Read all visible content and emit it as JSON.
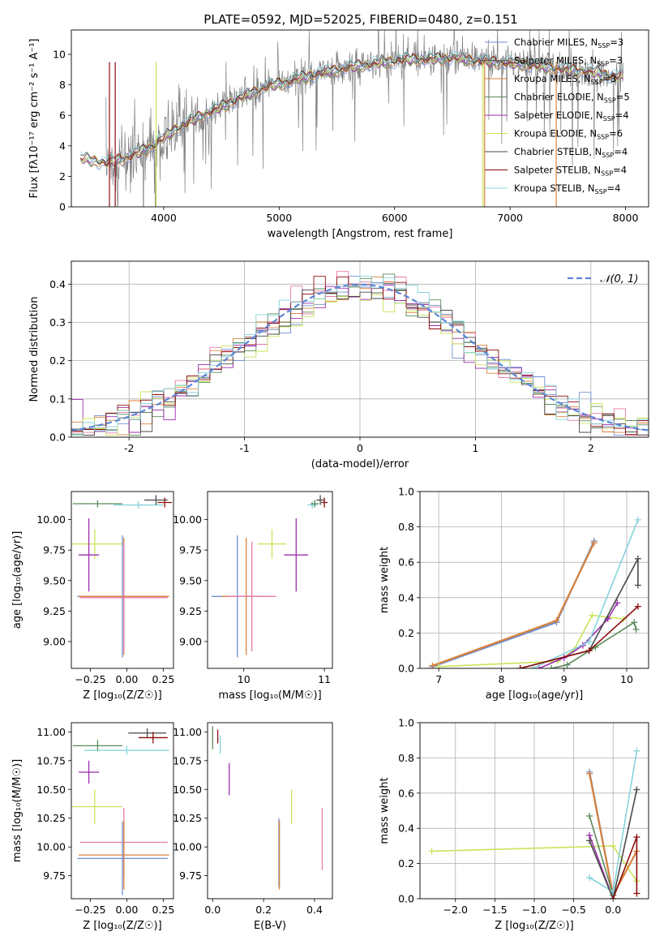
{
  "figure": {
    "title": "PLATE=0592, MJD=52025, FIBERID=0480, z=0.151"
  },
  "colors": {
    "Chabrier MILES": "#6f8fd1",
    "Salpeter MILES": "#5a5a5a",
    "Kroupa MILES": "#d9823b",
    "Chabrier ELODIE": "#5b8a5b",
    "Salpeter ELODIE": "#9b2fae",
    "Kroupa ELODIE": "#c7e55a",
    "Chabrier STELIB": "#4a4a4a",
    "Salpeter STELIB": "#8b0d0d",
    "Kroupa STELIB": "#86d3dc",
    "pink": "#e87ba8",
    "grid": "#b0b0b0",
    "normal": "#5b86d6"
  },
  "chart_data": [
    {
      "id": "spectrum",
      "type": "line",
      "xlabel": "wavelength [Angstrom, rest frame]",
      "ylabel": "Flux [fλ10⁻¹⁷ erg cm⁻² s⁻¹ A⁻¹]",
      "xlim": [
        3200,
        8200
      ],
      "ylim": [
        0,
        11.6
      ],
      "xticks": [
        4000,
        5000,
        6000,
        7000,
        8000
      ],
      "yticks": [
        0,
        2,
        4,
        6,
        8,
        10
      ],
      "grid": false,
      "legend_position": "top-right",
      "legend": [
        {
          "label": "Chabrier MILES, N",
          "sub": "SSP",
          "tail": "=3",
          "color_key": "Chabrier MILES"
        },
        {
          "label": "Salpeter MILES, N",
          "sub": "SSP",
          "tail": "=3",
          "color_key": "Salpeter MILES"
        },
        {
          "label": "Kroupa MILES, N",
          "sub": "SSP",
          "tail": "=3",
          "color_key": "Kroupa MILES"
        },
        {
          "label": "Chabrier ELODIE, N",
          "sub": "SSP",
          "tail": "=5",
          "color_key": "Chabrier ELODIE"
        },
        {
          "label": "Salpeter ELODIE, N",
          "sub": "SSP",
          "tail": "=4",
          "color_key": "Salpeter ELODIE"
        },
        {
          "label": "Kroupa ELODIE, N",
          "sub": "SSP",
          "tail": "=6",
          "color_key": "Kroupa ELODIE"
        },
        {
          "label": "Chabrier STELIB, N",
          "sub": "SSP",
          "tail": "=4",
          "color_key": "Chabrier STELIB"
        },
        {
          "label": "Salpeter STELIB, N",
          "sub": "SSP",
          "tail": "=4",
          "color_key": "Salpeter STELIB"
        },
        {
          "label": "Kroupa STELIB, N",
          "sub": "SSP",
          "tail": "=4",
          "color_key": "Kroupa STELIB"
        }
      ],
      "data_trend": {
        "x": [
          3300,
          3500,
          3700,
          3900,
          4100,
          4300,
          4500,
          4700,
          4900,
          5100,
          5300,
          5500,
          5700,
          5900,
          6100,
          6300,
          6500,
          6700,
          6900,
          7100,
          7300,
          7500,
          7700,
          7900
        ],
        "y": [
          3.2,
          2.9,
          3.3,
          4.0,
          5.1,
          5.9,
          6.6,
          7.3,
          7.9,
          8.3,
          8.7,
          9.0,
          9.3,
          9.5,
          9.7,
          9.7,
          9.8,
          9.6,
          9.5,
          9.4,
          9.2,
          9.0,
          8.9,
          8.6
        ]
      }
    },
    {
      "id": "residuals",
      "type": "line",
      "xlabel": "(data-model)/error",
      "ylabel": "Normed distribution",
      "xlim": [
        -2.5,
        2.5
      ],
      "ylim": [
        0,
        0.46
      ],
      "xticks": [
        -2,
        -1,
        0,
        1,
        2
      ],
      "yticks": [
        0.0,
        0.1,
        0.2,
        0.3,
        0.4
      ],
      "grid": true,
      "legend_position": "top-right",
      "legend_label": "𝒩(0, 1)",
      "normal": {
        "mu": 0,
        "sigma": 1
      },
      "bin_width": 0.1
    },
    {
      "id": "age_vs_Z",
      "type": "scatter",
      "xlabel": "Z [log₁₀(Z/Z☉)]",
      "ylabel": "age  [log₁₀(age/yr)]",
      "xlim": [
        -0.38,
        0.32
      ],
      "ylim": [
        8.78,
        10.23
      ],
      "xticks": [
        -0.25,
        0.0,
        0.25
      ],
      "yticks": [
        9.0,
        9.25,
        9.5,
        9.75,
        10.0
      ],
      "points": [
        {
          "key": "Chabrier ELODIE",
          "x": -0.2,
          "y": 10.13,
          "ex": 0.17,
          "ey": 0.03
        },
        {
          "key": "Kroupa STELIB",
          "x": 0.08,
          "y": 10.12,
          "ex": 0.17,
          "ey": 0.03
        },
        {
          "key": "Chabrier STELIB",
          "x": 0.2,
          "y": 10.16,
          "ex": 0.08,
          "ey": 0.04
        },
        {
          "key": "Salpeter STELIB",
          "x": 0.26,
          "y": 10.14,
          "ex": 0.05,
          "ey": 0.04
        },
        {
          "key": "Kroupa ELODIE",
          "x": -0.22,
          "y": 9.8,
          "ex": 0.19,
          "ey": 0.12
        },
        {
          "key": "Salpeter ELODIE",
          "x": -0.26,
          "y": 9.71,
          "ex": 0.07,
          "ey": 0.3
        },
        {
          "key": "Chabrier MILES",
          "x": -0.03,
          "y": 9.37,
          "ex": 0.31,
          "ey": 0.5
        },
        {
          "key": "Kroupa MILES",
          "x": -0.02,
          "y": 9.37,
          "ex": 0.31,
          "ey": 0.48
        },
        {
          "key": "pink",
          "x": -0.02,
          "y": 9.36,
          "ex": 0.3,
          "ey": 0.45
        }
      ]
    },
    {
      "id": "age_vs_mass",
      "type": "scatter",
      "xlabel": "mass [log₁₀(M/M☉)]",
      "ylabel": "",
      "xlim": [
        9.55,
        11.1
      ],
      "ylim": [
        8.78,
        10.23
      ],
      "xticks": [
        10,
        11
      ],
      "yticks": [
        9.0,
        9.25,
        9.5,
        9.75,
        10.0
      ],
      "points": [
        {
          "key": "Chabrier MILES",
          "x": 9.92,
          "y": 9.37,
          "ex": 0.32,
          "ey": 0.5
        },
        {
          "key": "Kroupa MILES",
          "x": 10.03,
          "y": 9.37,
          "ex": 0.3,
          "ey": 0.48
        },
        {
          "key": "pink",
          "x": 10.1,
          "y": 9.37,
          "ex": 0.3,
          "ey": 0.45
        },
        {
          "key": "Kroupa ELODIE",
          "x": 10.35,
          "y": 9.8,
          "ex": 0.18,
          "ey": 0.12
        },
        {
          "key": "Salpeter ELODIE",
          "x": 10.65,
          "y": 9.71,
          "ex": 0.15,
          "ey": 0.3
        },
        {
          "key": "Kroupa STELIB",
          "x": 10.85,
          "y": 10.12,
          "ex": 0.06,
          "ey": 0.03
        },
        {
          "key": "Chabrier ELODIE",
          "x": 10.88,
          "y": 10.13,
          "ex": 0.05,
          "ey": 0.03
        },
        {
          "key": "Chabrier STELIB",
          "x": 10.95,
          "y": 10.16,
          "ex": 0.05,
          "ey": 0.04
        },
        {
          "key": "Salpeter STELIB",
          "x": 11.0,
          "y": 10.14,
          "ex": 0.04,
          "ey": 0.04
        }
      ]
    },
    {
      "id": "massweight_vs_age",
      "type": "line",
      "xlabel": "age  [log₁₀(age/yr)]",
      "ylabel": "mass weight",
      "xlim": [
        6.7,
        10.35
      ],
      "ylim": [
        0.0,
        1.0
      ],
      "xticks": [
        7,
        8,
        9,
        10
      ],
      "yticks": [
        0.0,
        0.2,
        0.4,
        0.6,
        0.8,
        1.0
      ],
      "grid": true,
      "series": [
        {
          "key": "Chabrier MILES",
          "x": [
            6.9,
            8.88,
            9.48
          ],
          "y": [
            0.01,
            0.26,
            0.72
          ]
        },
        {
          "key": "Kroupa MILES",
          "x": [
            6.9,
            8.88,
            9.48
          ],
          "y": [
            0.015,
            0.27,
            0.71
          ]
        },
        {
          "key": "Kroupa ELODIE",
          "x": [
            7.0,
            8.9,
            9.15,
            9.45,
            9.95
          ],
          "y": [
            0.01,
            0.04,
            0.1,
            0.3,
            0.28
          ]
        },
        {
          "key": "Salpeter ELODIE",
          "x": [
            8.6,
            9.0,
            9.3,
            9.7,
            9.85
          ],
          "y": [
            0.0,
            0.06,
            0.13,
            0.28,
            0.37
          ]
        },
        {
          "key": "Chabrier ELODIE",
          "x": [
            8.8,
            9.05,
            9.5,
            10.12,
            10.15
          ],
          "y": [
            0.0,
            0.02,
            0.12,
            0.26,
            0.22
          ]
        },
        {
          "key": "Kroupa STELIB",
          "x": [
            8.5,
            9.4,
            10.18
          ],
          "y": [
            0.0,
            0.15,
            0.84
          ]
        },
        {
          "key": "Chabrier STELIB",
          "x": [
            8.3,
            9.4,
            10.18,
            10.18
          ],
          "y": [
            0.0,
            0.1,
            0.62,
            0.47
          ]
        },
        {
          "key": "Salpeter STELIB",
          "x": [
            8.3,
            9.4,
            10.18
          ],
          "y": [
            0.0,
            0.1,
            0.35
          ]
        }
      ]
    },
    {
      "id": "mass_vs_Z",
      "type": "scatter",
      "xlabel": "Z [log₁₀(Z/Z☉)]",
      "ylabel": "mass [log₁₀(M/M☉)]",
      "xlim": [
        -0.38,
        0.32
      ],
      "ylim": [
        9.55,
        11.08
      ],
      "xticks": [
        -0.25,
        0.0,
        0.25
      ],
      "yticks": [
        9.75,
        10.0,
        10.25,
        10.5,
        10.75,
        11.0
      ],
      "points": [
        {
          "key": "Chabrier STELIB",
          "x": 0.14,
          "y": 10.99,
          "ex": 0.13,
          "ey": 0.04
        },
        {
          "key": "Salpeter STELIB",
          "x": 0.18,
          "y": 10.95,
          "ex": 0.1,
          "ey": 0.05
        },
        {
          "key": "Chabrier ELODIE",
          "x": -0.2,
          "y": 10.88,
          "ex": 0.17,
          "ey": 0.05
        },
        {
          "key": "Kroupa STELIB",
          "x": 0.0,
          "y": 10.84,
          "ex": 0.29,
          "ey": 0.04
        },
        {
          "key": "Salpeter ELODIE",
          "x": -0.26,
          "y": 10.65,
          "ex": 0.07,
          "ey": 0.1
        },
        {
          "key": "Kroupa ELODIE",
          "x": -0.22,
          "y": 10.35,
          "ex": 0.19,
          "ey": 0.15
        },
        {
          "key": "pink",
          "x": -0.02,
          "y": 10.04,
          "ex": 0.3,
          "ey": 0.3
        },
        {
          "key": "Kroupa MILES",
          "x": -0.02,
          "y": 9.93,
          "ex": 0.31,
          "ey": 0.3
        },
        {
          "key": "Chabrier MILES",
          "x": -0.03,
          "y": 9.9,
          "ex": 0.31,
          "ey": 0.32
        }
      ]
    },
    {
      "id": "mass_vs_EBV",
      "type": "scatter",
      "xlabel": "E(B-V)",
      "ylabel": "",
      "xlim": [
        -0.02,
        0.47
      ],
      "ylim": [
        9.55,
        11.08
      ],
      "xticks": [
        0.0,
        0.2,
        0.4
      ],
      "yticks": [
        9.75,
        10.0,
        10.25,
        10.5,
        10.75,
        11.0
      ],
      "points": [
        {
          "key": "Chabrier ELODIE",
          "x": 0.0,
          "y": 10.95,
          "ex": 0,
          "ey": 0.1
        },
        {
          "key": "Salpeter STELIB",
          "x": 0.02,
          "y": 10.96,
          "ex": 0,
          "ey": 0.06
        },
        {
          "key": "Kroupa STELIB",
          "x": 0.03,
          "y": 10.89,
          "ex": 0,
          "ey": 0.08
        },
        {
          "key": "Salpeter ELODIE",
          "x": 0.065,
          "y": 10.59,
          "ex": 0,
          "ey": 0.14
        },
        {
          "key": "Chabrier MILES",
          "x": 0.26,
          "y": 9.95,
          "ex": 0,
          "ey": 0.3
        },
        {
          "key": "Kroupa MILES",
          "x": 0.262,
          "y": 9.93,
          "ex": 0,
          "ey": 0.3
        },
        {
          "key": "Kroupa ELODIE",
          "x": 0.31,
          "y": 10.35,
          "ex": 0,
          "ey": 0.15
        },
        {
          "key": "pink",
          "x": 0.43,
          "y": 10.07,
          "ex": 0,
          "ey": 0.27
        }
      ]
    },
    {
      "id": "massweight_vs_Z",
      "type": "line",
      "xlabel": "Z [log₁₀(Z/Z☉)]",
      "ylabel": "mass weight",
      "xlim": [
        -2.45,
        0.45
      ],
      "ylim": [
        0.0,
        1.0
      ],
      "xticks": [
        -2.0,
        -1.5,
        -1.0,
        -0.5,
        0.0
      ],
      "yticks": [
        0.0,
        0.2,
        0.4,
        0.6,
        0.8,
        1.0
      ],
      "grid": true,
      "series": [
        {
          "key": "Kroupa ELODIE",
          "x": [
            -2.3,
            0.0,
            0.3
          ],
          "y": [
            0.27,
            0.3,
            0.1
          ]
        },
        {
          "key": "Chabrier MILES",
          "x": [
            -0.3,
            0.0
          ],
          "y": [
            0.72,
            0.02
          ]
        },
        {
          "key": "Kroupa MILES",
          "x": [
            -0.3,
            0.0,
            0.3
          ],
          "y": [
            0.71,
            0.02,
            0.27
          ]
        },
        {
          "key": "Salpeter ELODIE",
          "x": [
            -0.3,
            0.0
          ],
          "y": [
            0.36,
            0.0
          ]
        },
        {
          "key": "Chabrier ELODIE",
          "x": [
            -0.3,
            0.0
          ],
          "y": [
            0.47,
            0.02
          ]
        },
        {
          "key": "Kroupa STELIB",
          "x": [
            -0.3,
            0.0,
            0.3
          ],
          "y": [
            0.12,
            0.04,
            0.84
          ]
        },
        {
          "key": "Chabrier STELIB",
          "x": [
            -0.3,
            0.0,
            0.3
          ],
          "y": [
            0.33,
            0.0,
            0.62
          ]
        },
        {
          "key": "Salpeter STELIB",
          "x": [
            0.0,
            0.3,
            0.3
          ],
          "y": [
            0.0,
            0.35,
            0.03
          ]
        }
      ]
    }
  ]
}
